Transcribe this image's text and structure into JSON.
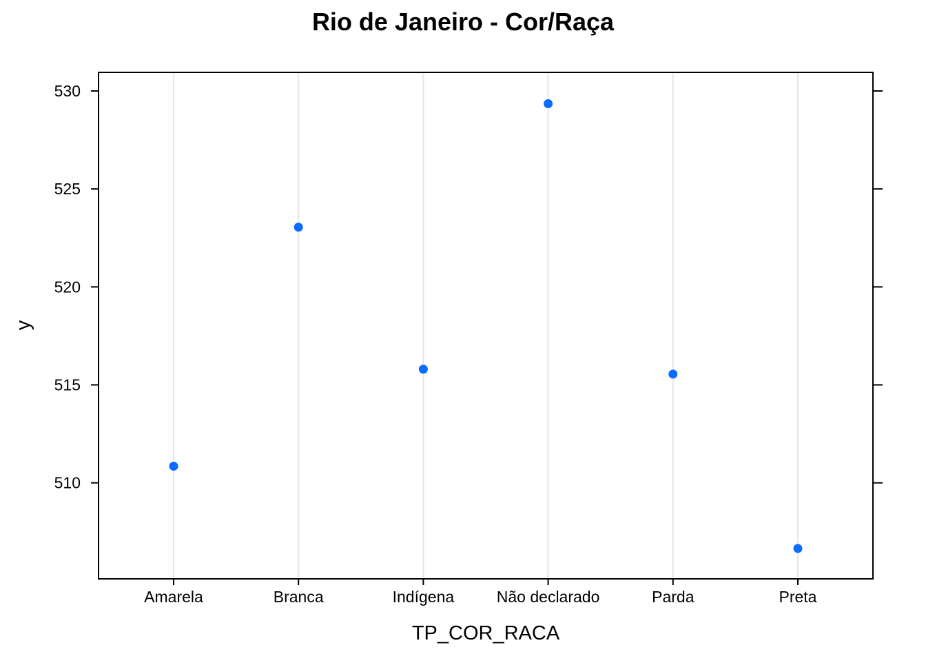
{
  "chart_data": {
    "type": "scatter",
    "title": "Rio de Janeiro - Cor/Raça",
    "xlabel": "TP_COR_RACA",
    "ylabel": "y",
    "categories": [
      "Amarela",
      "Branca",
      "Indígena",
      "Não declarado",
      "Parda",
      "Preta"
    ],
    "values": [
      510.85,
      523.05,
      515.8,
      529.35,
      515.55,
      506.65
    ],
    "ylim": [
      505.1,
      530.95
    ],
    "yticks": [
      510,
      515,
      520,
      525,
      530
    ],
    "grid": "vertical lines at categories",
    "point_color": "#0A6BFF",
    "grid_color": "#E6E6E6"
  }
}
